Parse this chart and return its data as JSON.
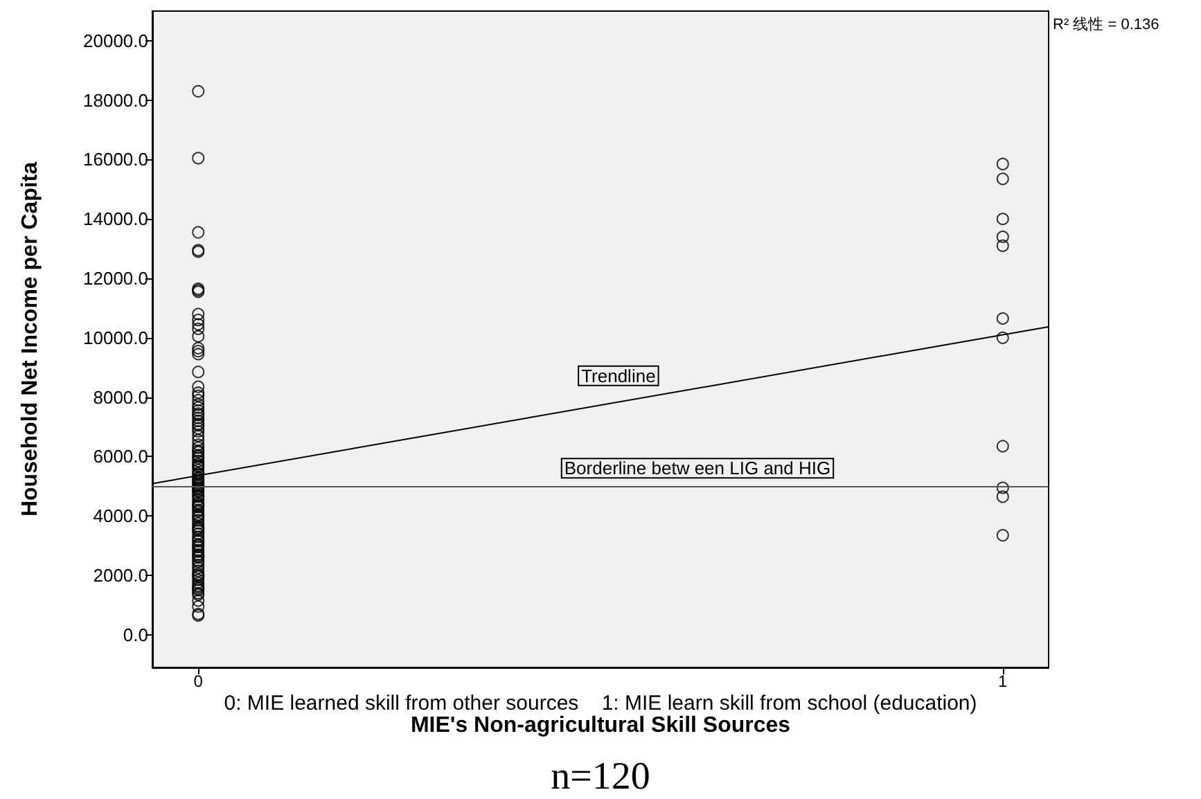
{
  "chart_data": {
    "type": "scatter",
    "xlabel": "MIE's Non-agricultural Skill Sources",
    "ylabel": "Household Net Income per Capita",
    "annotations": [
      "R² 线性 = 0.136",
      "0: MIE learned skill from other sources    1: MIE learn skill from school (education)",
      "n=120"
    ],
    "xlim": [
      -0.057,
      1.057
    ],
    "xticks": [
      0,
      1
    ],
    "ylim": [
      -1100,
      21000
    ],
    "yticks": [
      {
        "value": 0,
        "label": "0.0"
      },
      {
        "value": 2000,
        "label": "2000.0"
      },
      {
        "value": 4000,
        "label": "4000.0"
      },
      {
        "value": 6000,
        "label": "6000.0"
      },
      {
        "value": 8000,
        "label": "8000.0"
      },
      {
        "value": 10000,
        "label": "10000.0"
      },
      {
        "value": 12000,
        "label": "12000.0"
      },
      {
        "value": 14000,
        "label": "14000.0"
      },
      {
        "value": 16000,
        "label": "16000.0"
      },
      {
        "value": 18000,
        "label": "18000.0"
      },
      {
        "value": 20000,
        "label": "20000.0"
      }
    ],
    "marker": "circle",
    "series": [
      {
        "color": "#000000",
        "x": [
          0,
          0,
          0,
          0,
          0,
          0,
          0,
          0,
          0,
          0,
          0,
          0,
          0,
          0,
          0,
          0,
          0,
          0,
          0,
          0,
          0,
          0,
          0,
          0,
          0,
          0,
          0,
          0,
          0,
          0,
          0,
          0,
          0,
          0,
          0,
          0,
          0,
          0,
          0,
          0,
          0,
          0,
          0,
          0,
          0,
          0,
          0,
          0,
          0,
          0,
          0,
          0,
          0,
          0,
          0,
          0,
          0,
          0,
          0,
          0,
          0,
          0,
          0,
          0,
          0,
          0,
          0,
          0,
          0,
          0,
          0,
          0,
          0,
          0,
          0,
          0,
          0,
          0,
          0,
          0,
          0,
          0,
          0,
          0,
          0,
          0,
          0,
          0,
          0,
          0,
          0,
          0,
          0,
          0,
          0,
          0,
          0,
          0,
          0,
          0,
          0,
          0,
          0,
          0,
          0,
          0,
          0,
          0,
          0,
          1,
          1,
          1,
          1,
          1,
          1,
          1,
          1,
          1,
          1,
          1
        ],
        "values": [
          18300,
          16050,
          13550,
          12950,
          12900,
          11650,
          11600,
          11550,
          10800,
          10600,
          10450,
          10300,
          10050,
          9650,
          9550,
          9450,
          8850,
          8350,
          8150,
          8050,
          7900,
          7750,
          7650,
          7550,
          7450,
          7400,
          7300,
          7200,
          7100,
          7050,
          6950,
          6850,
          6700,
          6550,
          6400,
          6300,
          6200,
          6150,
          6050,
          6000,
          5950,
          5850,
          5750,
          5700,
          5650,
          5550,
          5450,
          5400,
          5300,
          5250,
          5200,
          5150,
          5100,
          5050,
          5000,
          4950,
          4900,
          4850,
          4800,
          4700,
          4650,
          4550,
          4450,
          4400,
          4350,
          4300,
          4200,
          4150,
          4050,
          4000,
          3950,
          3850,
          3750,
          3650,
          3600,
          3550,
          3500,
          3400,
          3300,
          3200,
          3150,
          3050,
          3000,
          2950,
          2850,
          2800,
          2700,
          2650,
          2600,
          2500,
          2450,
          2350,
          2250,
          2150,
          2050,
          2000,
          1950,
          1850,
          1750,
          1650,
          1600,
          1550,
          1500,
          1400,
          1350,
          1150,
          950,
          700,
          650,
          15850,
          15350,
          14000,
          13400,
          13100,
          10650,
          10000,
          6350,
          4950,
          4650,
          3350
        ]
      },
      {
        "type": "line",
        "name": "Trendline",
        "color": "#000000",
        "marker": "none",
        "x": [
          -0.057,
          1.057
        ],
        "values": [
          5090,
          10370
        ]
      }
    ],
    "ref_lines": [
      {
        "axis": "y",
        "value": 5000,
        "label": "Borderline betw een LIG and HIG",
        "color": "#595959"
      }
    ]
  }
}
